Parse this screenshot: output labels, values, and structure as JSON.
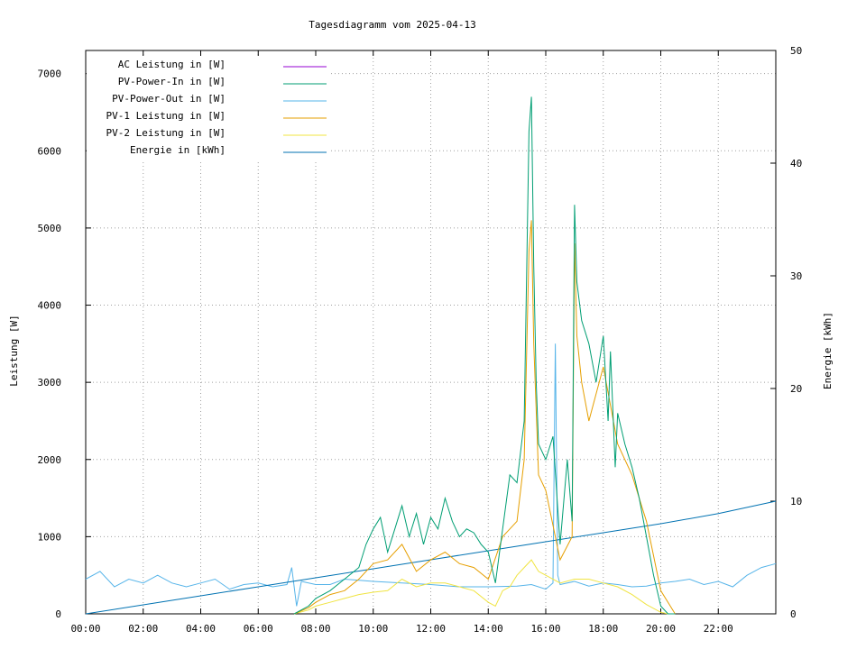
{
  "chart_data": {
    "type": "line",
    "title": "Tagesdiagramm vom 2025-04-13",
    "ylabel": "Leistung [W]",
    "y2label": "Energie [kWh]",
    "xlim": [
      "00:00",
      "24:00"
    ],
    "ylim": [
      0,
      7300
    ],
    "y2lim": [
      0,
      50
    ],
    "grid": true,
    "legend_position": "top-left",
    "xticks": [
      "00:00",
      "02:00",
      "04:00",
      "06:00",
      "08:00",
      "10:00",
      "12:00",
      "14:00",
      "16:00",
      "18:00",
      "20:00",
      "22:00"
    ],
    "yticks": [
      0,
      1000,
      2000,
      3000,
      4000,
      5000,
      6000,
      7000
    ],
    "y2ticks": [
      0,
      10,
      20,
      30,
      40,
      50
    ],
    "series": [
      {
        "name": "AC Leistung in [W]",
        "color": "#9400d3",
        "axis": "left",
        "x": [],
        "values": []
      },
      {
        "name": "PV-Power-In in [W]",
        "color": "#009e73",
        "axis": "left",
        "x": [
          "07:15",
          "07:45",
          "08:00",
          "08:30",
          "09:00",
          "09:30",
          "09:45",
          "10:00",
          "10:15",
          "10:30",
          "10:45",
          "11:00",
          "11:15",
          "11:30",
          "11:45",
          "12:00",
          "12:15",
          "12:30",
          "12:45",
          "13:00",
          "13:15",
          "13:30",
          "13:45",
          "14:00",
          "14:15",
          "14:30",
          "14:45",
          "15:00",
          "15:15",
          "15:25",
          "15:30",
          "15:35",
          "15:40",
          "15:45",
          "16:00",
          "16:15",
          "16:30",
          "16:45",
          "16:55",
          "17:00",
          "17:05",
          "17:15",
          "17:30",
          "17:45",
          "18:00",
          "18:10",
          "18:15",
          "18:25",
          "18:30",
          "18:45",
          "19:00",
          "19:15",
          "19:30",
          "19:45",
          "20:00",
          "20:15",
          "20:30"
        ],
        "values": [
          0,
          100,
          200,
          300,
          450,
          600,
          900,
          1100,
          1250,
          800,
          1100,
          1400,
          1000,
          1300,
          900,
          1250,
          1100,
          1500,
          1200,
          1000,
          1100,
          1050,
          900,
          800,
          400,
          1100,
          1800,
          1700,
          2500,
          6250,
          6700,
          4500,
          3000,
          2200,
          2000,
          2300,
          900,
          2000,
          1200,
          5300,
          4300,
          3800,
          3500,
          3000,
          3600,
          2500,
          3400,
          1900,
          2600,
          2200,
          1900,
          1500,
          1000,
          500,
          100,
          0,
          0
        ]
      },
      {
        "name": "PV-Power-Out in [W]",
        "color": "#56b4e9",
        "axis": "left",
        "x": [
          "00:00",
          "00:30",
          "01:00",
          "01:30",
          "02:00",
          "02:30",
          "03:00",
          "03:30",
          "04:00",
          "04:30",
          "05:00",
          "05:30",
          "06:00",
          "06:30",
          "07:00",
          "07:10",
          "07:20",
          "07:30",
          "08:00",
          "08:30",
          "09:00",
          "10:00",
          "11:00",
          "12:00",
          "13:00",
          "14:00",
          "15:00",
          "15:30",
          "16:00",
          "16:15",
          "16:20",
          "16:25",
          "16:30",
          "17:00",
          "17:30",
          "18:00",
          "18:30",
          "19:00",
          "19:30",
          "20:00",
          "20:30",
          "21:00",
          "21:30",
          "22:00",
          "22:30",
          "23:00",
          "23:30",
          "24:00"
        ],
        "values": [
          450,
          550,
          350,
          450,
          400,
          500,
          400,
          350,
          400,
          450,
          320,
          380,
          400,
          350,
          380,
          600,
          100,
          420,
          380,
          380,
          450,
          420,
          400,
          380,
          350,
          350,
          360,
          380,
          320,
          400,
          3500,
          500,
          380,
          420,
          360,
          400,
          380,
          350,
          360,
          400,
          420,
          450,
          380,
          420,
          350,
          500,
          600,
          650
        ]
      },
      {
        "name": "PV-1 Leistung in [W]",
        "color": "#e69f00",
        "axis": "left",
        "x": [
          "07:15",
          "07:45",
          "08:00",
          "08:30",
          "09:00",
          "09:30",
          "10:00",
          "10:30",
          "11:00",
          "11:30",
          "12:00",
          "12:30",
          "13:00",
          "13:30",
          "14:00",
          "14:30",
          "14:45",
          "15:00",
          "15:15",
          "15:25",
          "15:30",
          "15:35",
          "15:45",
          "16:00",
          "16:30",
          "16:55",
          "17:00",
          "17:05",
          "17:15",
          "17:30",
          "18:00",
          "18:30",
          "19:00",
          "19:30",
          "20:00",
          "20:30"
        ],
        "values": [
          0,
          80,
          150,
          250,
          300,
          450,
          650,
          700,
          900,
          550,
          700,
          800,
          650,
          600,
          450,
          1000,
          1100,
          1200,
          2000,
          4700,
          5100,
          3500,
          1800,
          1600,
          700,
          1000,
          4800,
          3600,
          3000,
          2500,
          3200,
          2200,
          1800,
          1200,
          300,
          0
        ]
      },
      {
        "name": "PV-2 Leistung in [W]",
        "color": "#f0e442",
        "axis": "left",
        "x": [
          "07:15",
          "07:45",
          "08:00",
          "08:30",
          "09:00",
          "09:30",
          "10:00",
          "10:30",
          "11:00",
          "11:30",
          "12:00",
          "12:30",
          "13:00",
          "13:30",
          "14:00",
          "14:15",
          "14:30",
          "14:45",
          "15:00",
          "15:15",
          "15:30",
          "15:45",
          "16:00",
          "16:30",
          "17:00",
          "17:30",
          "18:00",
          "18:30",
          "19:00",
          "19:30",
          "20:00",
          "20:15"
        ],
        "values": [
          0,
          50,
          100,
          150,
          200,
          250,
          280,
          300,
          450,
          350,
          400,
          400,
          350,
          300,
          150,
          100,
          300,
          350,
          500,
          600,
          700,
          550,
          500,
          400,
          450,
          450,
          400,
          350,
          250,
          120,
          20,
          0
        ]
      },
      {
        "name": "Energie in [kWh]",
        "color": "#0072b2",
        "axis": "right",
        "x": [
          "00:00",
          "02:00",
          "04:00",
          "06:00",
          "08:00",
          "10:00",
          "12:00",
          "14:00",
          "16:00",
          "18:00",
          "20:00",
          "22:00",
          "24:00"
        ],
        "values": [
          0,
          0.8,
          1.6,
          2.4,
          3.2,
          4.0,
          4.8,
          5.6,
          6.4,
          7.2,
          8.0,
          8.9,
          10.0
        ]
      }
    ]
  }
}
